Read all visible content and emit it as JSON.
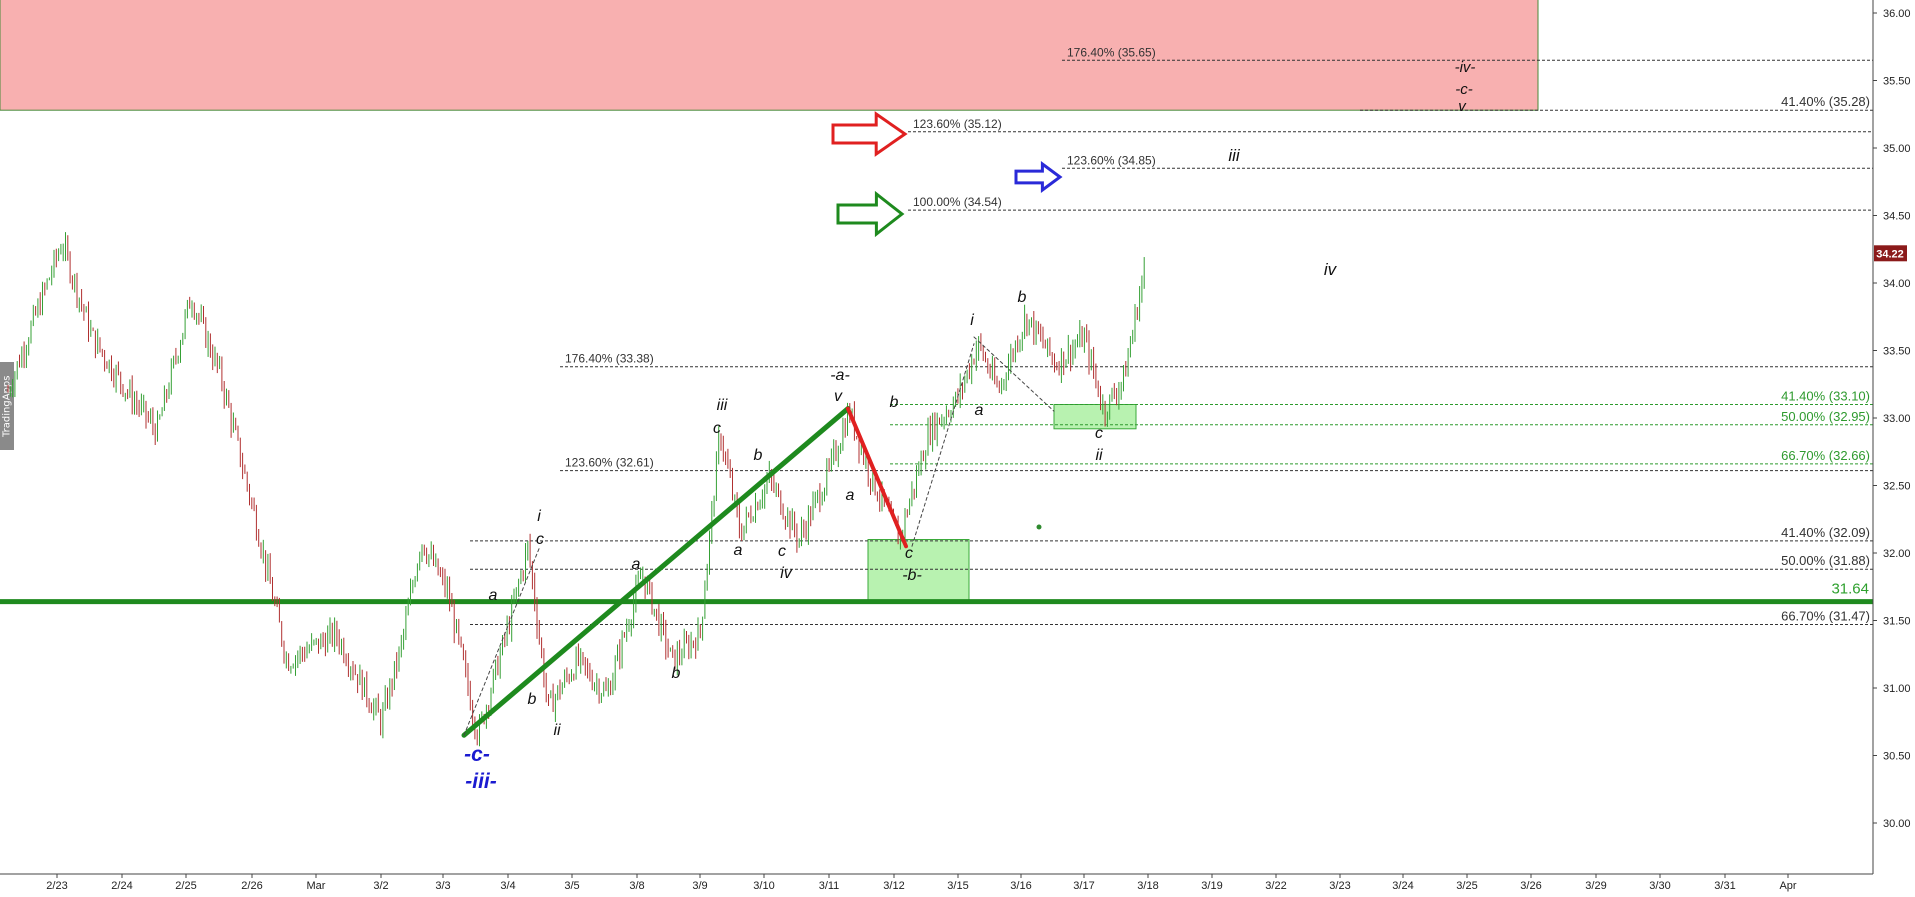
{
  "watermark": "TradingApps",
  "chart_data": {
    "type": "candlestick",
    "ylim": [
      29.7,
      36.1
    ],
    "y_ticks": [
      "36.00",
      "35.50",
      "35.00",
      "34.50",
      "34.00",
      "33.50",
      "33.00",
      "32.50",
      "32.00",
      "31.50",
      "31.00",
      "30.50",
      "30.00"
    ],
    "x_ticks": [
      "2/23",
      "2/24",
      "2/25",
      "2/26",
      "Mar",
      "3/2",
      "3/3",
      "3/4",
      "3/5",
      "3/8",
      "3/9",
      "3/10",
      "3/11",
      "3/12",
      "3/15",
      "3/16",
      "3/17",
      "3/18",
      "3/19",
      "3/22",
      "3/23",
      "3/24",
      "3/25",
      "3/26",
      "3/29",
      "3/30",
      "3/31",
      "Apr"
    ],
    "last_price": "34.22",
    "price_path": [
      [
        "2/22",
        33.2
      ],
      [
        "2/23",
        34.3
      ],
      [
        "2/23",
        33.6
      ],
      [
        "2/24",
        33.2
      ],
      [
        "2/24",
        32.9
      ],
      [
        "2/25",
        33.9
      ],
      [
        "2/25",
        33.3
      ],
      [
        "2/26",
        32.2
      ],
      [
        "2/26",
        31.2
      ],
      [
        "Mar",
        31.4
      ],
      [
        "3/2",
        30.75
      ],
      [
        "3/2",
        31.3
      ],
      [
        "3/2",
        32.1
      ],
      [
        "3/3",
        31.7
      ],
      [
        "3/3",
        30.65
      ],
      [
        "3/4",
        31.45
      ],
      [
        "3/4",
        32.05
      ],
      [
        "3/4",
        30.85
      ],
      [
        "3/5",
        31.2
      ],
      [
        "3/5",
        30.95
      ],
      [
        "3/8",
        31.85
      ],
      [
        "3/8",
        31.2
      ],
      [
        "3/9",
        31.4
      ],
      [
        "3/9",
        32.9
      ],
      [
        "3/9",
        32.15
      ],
      [
        "3/10",
        32.55
      ],
      [
        "3/10",
        32.1
      ],
      [
        "3/11",
        32.6
      ],
      [
        "3/11",
        33.05
      ],
      [
        "3/11",
        32.6
      ],
      [
        "3/12",
        32.1
      ],
      [
        "3/12",
        32.9
      ],
      [
        "3/15",
        33.15
      ],
      [
        "3/15",
        33.55
      ],
      [
        "3/15",
        33.2
      ],
      [
        "3/16",
        33.75
      ],
      [
        "3/16",
        33.4
      ],
      [
        "3/17",
        33.6
      ],
      [
        "3/17",
        33.05
      ],
      [
        "3/17",
        33.3
      ],
      [
        "3/18",
        34.45
      ],
      [
        "3/18",
        34.22
      ]
    ],
    "support_line": {
      "value": 31.64,
      "label": "31.64"
    },
    "fib_levels": [
      {
        "label": "176.40% (35.65)",
        "value": 35.65,
        "color": "#333333"
      },
      {
        "label": "41.40% (35.28)",
        "value": 35.28,
        "color": "#333333"
      },
      {
        "label": "123.60% (35.12)",
        "value": 35.12,
        "color": "#333333"
      },
      {
        "label": "123.60% (34.85)",
        "value": 34.85,
        "color": "#333333"
      },
      {
        "label": "100.00% (34.54)",
        "value": 34.54,
        "color": "#333333"
      },
      {
        "label": "176.40% (33.38)",
        "value": 33.38,
        "color": "#333333"
      },
      {
        "label": "41.40% (33.10)",
        "value": 33.1,
        "color": "#2e9a2e"
      },
      {
        "label": "50.00% (32.95)",
        "value": 32.95,
        "color": "#2e9a2e"
      },
      {
        "label": "66.70% (32.66)",
        "value": 32.66,
        "color": "#2e9a2e"
      },
      {
        "label": "123.60% (32.61)",
        "value": 32.61,
        "color": "#333333"
      },
      {
        "label": "41.40% (32.09)",
        "value": 32.09,
        "color": "#333333"
      },
      {
        "label": "50.00% (31.88)",
        "value": 31.88,
        "color": "#333333"
      },
      {
        "label": "66.70% (31.47)",
        "value": 31.47,
        "color": "#333333"
      }
    ],
    "wave_labels": [
      {
        "text": "i",
        "date": "3/4",
        "price": 32.25
      },
      {
        "text": "c",
        "date": "3/4",
        "price": 32.08
      },
      {
        "text": "a",
        "date": "3/3",
        "price": 31.6
      },
      {
        "text": "b",
        "date": "3/4",
        "price": 31.0
      },
      {
        "text": "ii",
        "date": "3/4",
        "price": 30.6
      },
      {
        "text": "a",
        "date": "3/8",
        "price": 31.85
      },
      {
        "text": "b",
        "date": "3/8",
        "price": 31.1
      },
      {
        "text": "-c-",
        "date": "3/3",
        "price": 30.5
      },
      {
        "text": "-iii-",
        "date": "3/3",
        "price": 30.3
      },
      {
        "text": "iii",
        "date": "3/9",
        "price": 33.05
      },
      {
        "text": "c",
        "date": "3/9",
        "price": 32.9
      },
      {
        "text": "b",
        "date": "3/9",
        "price": 32.7
      },
      {
        "text": "a",
        "date": "3/9",
        "price": 31.95
      },
      {
        "text": "c",
        "date": "3/10",
        "price": 31.95
      },
      {
        "text": "iv",
        "date": "3/10",
        "price": 31.75
      },
      {
        "text": "-a-",
        "date": "3/11",
        "price": 33.3
      },
      {
        "text": "v",
        "date": "3/11",
        "price": 33.15
      },
      {
        "text": "a",
        "date": "3/11",
        "price": 32.35
      },
      {
        "text": "b",
        "date": "3/12",
        "price": 33.1
      },
      {
        "text": "c",
        "date": "3/12",
        "price": 31.95
      },
      {
        "text": "-b-",
        "date": "3/12",
        "price": 31.8
      },
      {
        "text": "i",
        "date": "3/15",
        "price": 33.7
      },
      {
        "text": "a",
        "date": "3/15",
        "price": 33.0
      },
      {
        "text": "b",
        "date": "3/16",
        "price": 33.88
      },
      {
        "text": "c",
        "date": "3/17",
        "price": 32.83
      },
      {
        "text": "ii",
        "date": "3/17",
        "price": 32.66
      },
      {
        "text": "iii",
        "date": "3/19",
        "price": 34.92
      },
      {
        "text": "iv",
        "date": "3/22",
        "price": 34.1
      },
      {
        "text": "-iv-",
        "date": "3/24",
        "price": 35.63
      },
      {
        "text": "-c-",
        "date": "3/24",
        "price": 35.47
      },
      {
        "text": "v",
        "date": "3/24",
        "price": 35.33
      }
    ],
    "zones": [
      {
        "name": "resistance-zone",
        "from": "2/22",
        "to": "3/26",
        "low": 35.28,
        "high": 36.1,
        "color": "#f8b0b0"
      },
      {
        "name": "wave-b-zone",
        "from": "3/12",
        "to": "3/15",
        "low": 31.64,
        "high": 32.1,
        "color": "#b8f2b0"
      },
      {
        "name": "wave-ii-zone",
        "from": "3/16",
        "to": "3/17",
        "low": 32.92,
        "high": 33.1,
        "color": "#b8f2b0"
      }
    ]
  }
}
